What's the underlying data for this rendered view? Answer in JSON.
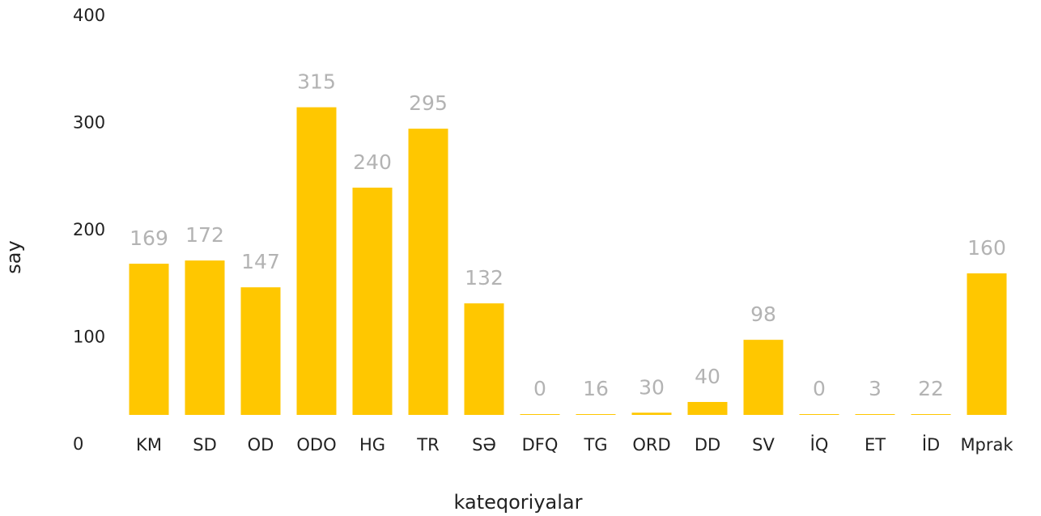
{
  "chart_data": {
    "type": "bar",
    "x_label": "kateqoriyalar",
    "y_label": "say",
    "categories": [
      "KM",
      "SD",
      "OD",
      "ODO",
      "HG",
      "TR",
      "SƏ",
      "DFQ",
      "TG",
      "ORD",
      "DD",
      "SV",
      "İQ",
      "ET",
      "İD",
      "Mprak"
    ],
    "values": [
      169,
      172,
      147,
      315,
      240,
      295,
      132,
      0,
      16,
      30,
      40,
      98,
      0,
      3,
      22,
      160
    ],
    "color": "#ffc700",
    "ylim": [
      0,
      400
    ],
    "yticks": [
      0,
      100,
      200,
      300,
      400
    ],
    "grid": false
  }
}
